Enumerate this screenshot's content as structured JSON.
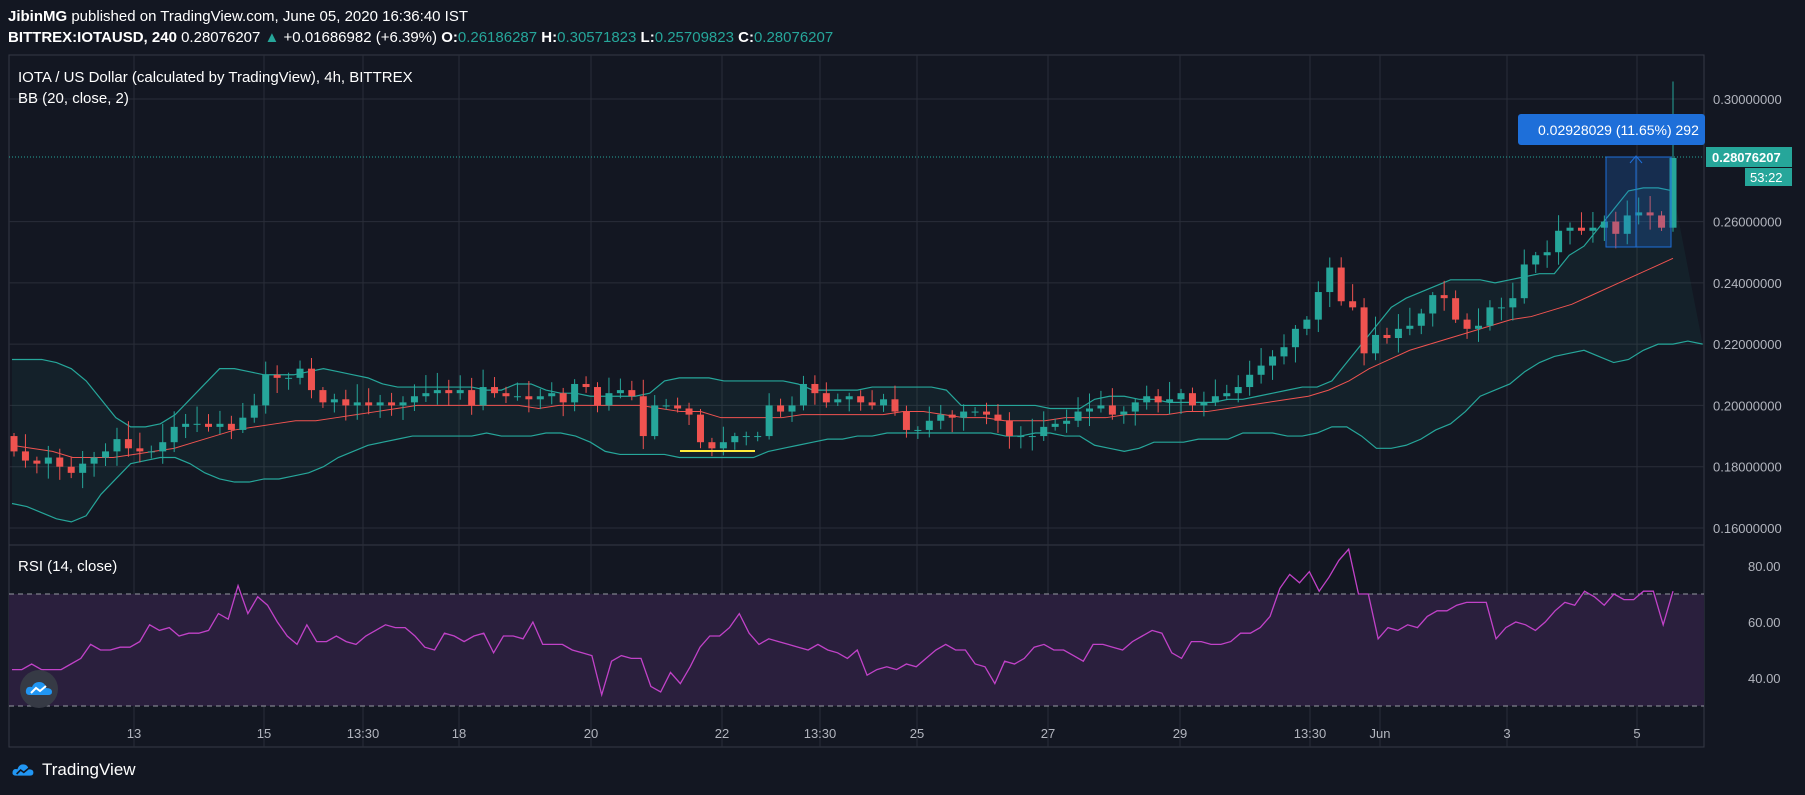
{
  "header": {
    "publisher": "JibinMG",
    "published_text": "published on TradingView.com, June 05, 2020 16:36:40 IST",
    "symbol": "BITTREX:IOTAUSD, 240",
    "price": "0.28076207",
    "change": "+0.01686982 (+6.39%)",
    "o_label": "O:",
    "o": "0.26186287",
    "h_label": "H:",
    "h": "0.30571823",
    "l_label": "L:",
    "l": "0.25709823",
    "c_label": "C:",
    "c": "0.28076207"
  },
  "chart_title": "IOTA / US Dollar (calculated by TradingView), 4h, BITTREX",
  "bb_label": "BB (20, close, 2)",
  "rsi_label": "RSI (14, close)",
  "footer_brand": "TradingView",
  "measure_label": "0.02928029 (11.65%) 292",
  "last_price_label": "0.28076207",
  "countdown": "53:22",
  "colors": {
    "background": "#131722",
    "up": "#26a69a",
    "down": "#ef5350",
    "bb_band": "#26a69a",
    "bb_basis": "#ef5350",
    "rsi_line": "#c142c8",
    "rsi_fill": "#2a1f3d",
    "measure": "#1e6fd9",
    "highlight": "#ffeb3b"
  },
  "chart_data": [
    {
      "type": "candlestick",
      "title": "IOTA / US Dollar (calculated by TradingView), 4h, BITTREX",
      "x_ticks": [
        "13",
        "15",
        "13:30",
        "18",
        "20",
        "22",
        "13:30",
        "25",
        "27",
        "29",
        "13:30",
        "Jun",
        "3",
        "5"
      ],
      "y_ticks": [
        "0.30000000",
        "0.26000000",
        "0.24000000",
        "0.22000000",
        "0.20000000",
        "0.18000000",
        "0.16000000"
      ],
      "ylim": [
        0.155,
        0.307
      ],
      "grid": true,
      "closes": [
        0.185,
        0.182,
        0.181,
        0.183,
        0.18,
        0.178,
        0.181,
        0.183,
        0.185,
        0.189,
        0.186,
        0.185,
        0.185,
        0.188,
        0.193,
        0.194,
        0.194,
        0.193,
        0.194,
        0.192,
        0.196,
        0.2,
        0.21,
        0.209,
        0.209,
        0.212,
        0.205,
        0.201,
        0.202,
        0.2,
        0.201,
        0.2,
        0.201,
        0.2,
        0.201,
        0.203,
        0.204,
        0.205,
        0.204,
        0.205,
        0.2,
        0.206,
        0.204,
        0.203,
        0.203,
        0.202,
        0.203,
        0.204,
        0.201,
        0.207,
        0.206,
        0.2,
        0.204,
        0.205,
        0.203,
        0.19,
        0.2,
        0.2,
        0.199,
        0.197,
        0.188,
        0.186,
        0.188,
        0.19,
        0.19,
        0.19,
        0.2,
        0.198,
        0.2,
        0.207,
        0.204,
        0.201,
        0.202,
        0.203,
        0.201,
        0.2,
        0.202,
        0.198,
        0.192,
        0.192,
        0.195,
        0.197,
        0.196,
        0.198,
        0.198,
        0.197,
        0.195,
        0.19,
        0.19,
        0.19,
        0.193,
        0.194,
        0.195,
        0.198,
        0.199,
        0.2,
        0.197,
        0.198,
        0.201,
        0.203,
        0.201,
        0.202,
        0.204,
        0.2,
        0.201,
        0.203,
        0.204,
        0.206,
        0.21,
        0.213,
        0.216,
        0.219,
        0.225,
        0.228,
        0.237,
        0.245,
        0.234,
        0.232,
        0.217,
        0.223,
        0.222,
        0.225,
        0.226,
        0.23,
        0.236,
        0.235,
        0.228,
        0.225,
        0.226,
        0.232,
        0.232,
        0.235,
        0.246,
        0.249,
        0.25,
        0.257,
        0.258,
        0.257,
        0.258,
        0.26,
        0.256,
        0.262,
        0.263,
        0.262,
        0.258,
        0.28076207
      ],
      "bb_upper": [
        0.215,
        0.215,
        0.215,
        0.214,
        0.212,
        0.208,
        0.202,
        0.196,
        0.193,
        0.193,
        0.194,
        0.197,
        0.202,
        0.207,
        0.212,
        0.212,
        0.211,
        0.21,
        0.21,
        0.21,
        0.211,
        0.212,
        0.211,
        0.21,
        0.209,
        0.207,
        0.206,
        0.206,
        0.206,
        0.206,
        0.206,
        0.206,
        0.205,
        0.205,
        0.207,
        0.207,
        0.205,
        0.204,
        0.204,
        0.203,
        0.203,
        0.203,
        0.203,
        0.204,
        0.208,
        0.209,
        0.209,
        0.209,
        0.208,
        0.208,
        0.208,
        0.208,
        0.208,
        0.207,
        0.205,
        0.205,
        0.205,
        0.205,
        0.206,
        0.206,
        0.206,
        0.206,
        0.206,
        0.205,
        0.2,
        0.2,
        0.2,
        0.2,
        0.2,
        0.2,
        0.199,
        0.199,
        0.199,
        0.202,
        0.203,
        0.203,
        0.202,
        0.202,
        0.201,
        0.201,
        0.201,
        0.201,
        0.202,
        0.202,
        0.203,
        0.204,
        0.205,
        0.206,
        0.206,
        0.208,
        0.214,
        0.22,
        0.226,
        0.232,
        0.235,
        0.237,
        0.239,
        0.241,
        0.241,
        0.241,
        0.24,
        0.241,
        0.242,
        0.243,
        0.243,
        0.249,
        0.252,
        0.258,
        0.264,
        0.27,
        0.271,
        0.271,
        0.27
      ],
      "bb_lower": [
        0.168,
        0.167,
        0.165,
        0.163,
        0.162,
        0.164,
        0.171,
        0.176,
        0.181,
        0.182,
        0.183,
        0.183,
        0.181,
        0.178,
        0.176,
        0.175,
        0.175,
        0.176,
        0.176,
        0.177,
        0.178,
        0.18,
        0.183,
        0.185,
        0.187,
        0.188,
        0.189,
        0.19,
        0.19,
        0.19,
        0.19,
        0.19,
        0.191,
        0.19,
        0.19,
        0.19,
        0.191,
        0.191,
        0.19,
        0.188,
        0.185,
        0.184,
        0.184,
        0.184,
        0.184,
        0.183,
        0.183,
        0.183,
        0.183,
        0.183,
        0.183,
        0.185,
        0.186,
        0.187,
        0.188,
        0.189,
        0.189,
        0.19,
        0.19,
        0.191,
        0.191,
        0.191,
        0.191,
        0.191,
        0.191,
        0.191,
        0.191,
        0.19,
        0.19,
        0.191,
        0.191,
        0.19,
        0.19,
        0.187,
        0.186,
        0.185,
        0.186,
        0.188,
        0.188,
        0.188,
        0.189,
        0.189,
        0.189,
        0.191,
        0.191,
        0.191,
        0.19,
        0.19,
        0.191,
        0.193,
        0.193,
        0.19,
        0.186,
        0.186,
        0.187,
        0.189,
        0.192,
        0.194,
        0.198,
        0.203,
        0.205,
        0.207,
        0.211,
        0.214,
        0.216,
        0.217,
        0.218,
        0.216,
        0.214,
        0.215,
        0.218,
        0.22,
        0.22,
        0.221,
        0.22
      ],
      "bb_basis": [
        0.187,
        0.186,
        0.185,
        0.183,
        0.183,
        0.183,
        0.184,
        0.185,
        0.186,
        0.188,
        0.19,
        0.192,
        0.193,
        0.194,
        0.195,
        0.195,
        0.196,
        0.197,
        0.198,
        0.199,
        0.2,
        0.2,
        0.2,
        0.2,
        0.2,
        0.2,
        0.199,
        0.2,
        0.2,
        0.2,
        0.2,
        0.2,
        0.199,
        0.198,
        0.198,
        0.196,
        0.196,
        0.196,
        0.196,
        0.197,
        0.197,
        0.197,
        0.197,
        0.197,
        0.198,
        0.198,
        0.197,
        0.196,
        0.196,
        0.195,
        0.195,
        0.195,
        0.196,
        0.196,
        0.196,
        0.197,
        0.197,
        0.197,
        0.198,
        0.198,
        0.199,
        0.2,
        0.201,
        0.202,
        0.203,
        0.205,
        0.208,
        0.212,
        0.215,
        0.218,
        0.22,
        0.222,
        0.224,
        0.226,
        0.228,
        0.229,
        0.231,
        0.233,
        0.236,
        0.239,
        0.242,
        0.245,
        0.248
      ]
    },
    {
      "type": "line",
      "title": "RSI (14, close)",
      "y_ticks": [
        "80.00",
        "60.00",
        "40.00"
      ],
      "ylim": [
        25,
        88
      ],
      "bands": [
        30,
        70
      ],
      "values": [
        43,
        43,
        45,
        43,
        43,
        43,
        45,
        47,
        52,
        50,
        50,
        51,
        51,
        53,
        59,
        57,
        58,
        55,
        56,
        56,
        57,
        63,
        61,
        73,
        63,
        69,
        66,
        60,
        55,
        52,
        59,
        53,
        53,
        55,
        53,
        52,
        55,
        57,
        59,
        58,
        58,
        55,
        51,
        50,
        56,
        55,
        53,
        55,
        56,
        49,
        55,
        55,
        54,
        60,
        52,
        52,
        52,
        50,
        49,
        48,
        34,
        46,
        48,
        47,
        47,
        37,
        35,
        42,
        38,
        44,
        51,
        55,
        55,
        58,
        63,
        56,
        52,
        54,
        53,
        52,
        51,
        50,
        52,
        50,
        49,
        47,
        50,
        41,
        43,
        44,
        43,
        45,
        44,
        47,
        50,
        52,
        50,
        50,
        45,
        44,
        38,
        46,
        45,
        47,
        51,
        52,
        50,
        50,
        48,
        46,
        52,
        52,
        51,
        50,
        53,
        55,
        57,
        56,
        49,
        47,
        53,
        53,
        52,
        52,
        53,
        56,
        56,
        58,
        62,
        72,
        77,
        74,
        78,
        71,
        76,
        82,
        86,
        70,
        70,
        54,
        58,
        57,
        59,
        58,
        62,
        64,
        64,
        66,
        67,
        67,
        67,
        54,
        58,
        60,
        59,
        57,
        60,
        64,
        67,
        66,
        71,
        69,
        66,
        70,
        68,
        68,
        71,
        71,
        59,
        71
      ]
    }
  ]
}
